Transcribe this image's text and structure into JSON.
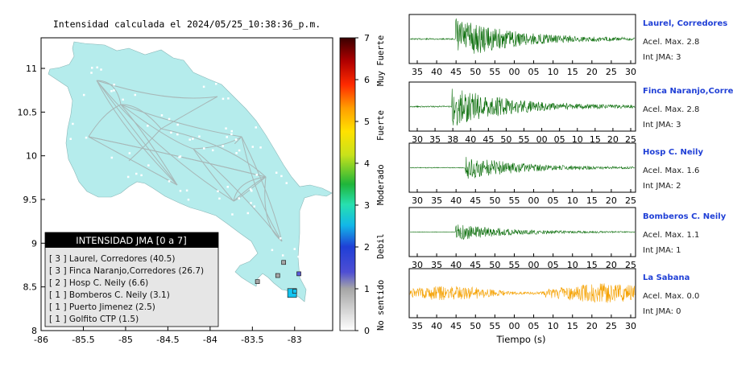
{
  "map": {
    "title": "Intensidad calculada el 2024/05/25_10:38:36_p.m.",
    "xticks": [
      "-86",
      "-85.5",
      "-85",
      "-84.5",
      "-84",
      "-83.5",
      "-83"
    ],
    "yticks": [
      "11",
      "10.5",
      "10",
      "9.5",
      "9",
      "8.5",
      "8"
    ],
    "legend": {
      "title": "INTENSIDAD JMA [0 a 7]",
      "items": [
        "[ 3 ]  Laurel, Corredores (40.5)",
        "[ 3 ]  Finca Naranjo,Corredores (26.7)",
        "[ 2 ]  Hosp C. Neily (6.6)",
        "[ 1 ]  Bomberos C. Neily (3.1)",
        "[ 1 ]  Puerto Jimenez (2.5)",
        "[ 1 ]  Golfito CTP (1.5)"
      ]
    }
  },
  "colorbar": {
    "ticks": [
      "0",
      "1",
      "2",
      "3",
      "4",
      "5",
      "6",
      "7"
    ],
    "categories": [
      "No sentido",
      "Debil",
      "Moderado",
      "Fuerte",
      "Muy Fuerte"
    ]
  },
  "waveforms": {
    "xlabel": "Tiempo (s)",
    "panels": [
      {
        "name": "Laurel, Corredores",
        "acel": "Acel. Max. 2.8",
        "jma": "Int JMA: 3",
        "color": "#0b6e0b",
        "ticks": [
          "35",
          "40",
          "45",
          "50",
          "55",
          "00",
          "05",
          "10",
          "15",
          "20",
          "25",
          "30"
        ]
      },
      {
        "name": "Finca Naranjo,Corredor",
        "acel": "Acel. Max. 2.8",
        "jma": "Int JMA: 3",
        "color": "#0b6e0b",
        "ticks": [
          "30",
          "35",
          "38",
          "40",
          "45",
          "50",
          "55",
          "00",
          "05",
          "10",
          "15",
          "20",
          "25"
        ]
      },
      {
        "name": "Hosp C. Neily",
        "acel": "Acel. Max. 1.6",
        "jma": "Int JMA: 2",
        "color": "#0b6e0b",
        "ticks": [
          "30",
          "35",
          "40",
          "45",
          "50",
          "55",
          "00",
          "05",
          "10",
          "15",
          "20",
          "25"
        ]
      },
      {
        "name": "Bomberos C. Neily",
        "acel": "Acel. Max. 1.1",
        "jma": "Int JMA: 1",
        "color": "#0b6e0b",
        "ticks": [
          "30",
          "35",
          "40",
          "45",
          "50",
          "55",
          "00",
          "05",
          "10",
          "15",
          "20",
          "25"
        ]
      },
      {
        "name": "La Sabana",
        "acel": "Acel. Max. 0.0",
        "jma": "Int JMA: 0",
        "color": "#f5a100",
        "ticks": [
          "35",
          "40",
          "45",
          "50",
          "55",
          "00",
          "05",
          "10",
          "15",
          "20",
          "25",
          "30"
        ]
      }
    ]
  },
  "chart_data": [
    {
      "type": "scatter",
      "title": "Intensidad calculada el 2024/05/25_10:38:36_p.m.",
      "xlim": [
        -86,
        -82.55
      ],
      "ylim": [
        8,
        11.35
      ],
      "legend_title": "INTENSIDAD JMA [0 a 7]",
      "legend_placement": "bottom-left",
      "points": [
        {
          "name": "Laurel, Corredores",
          "x": -83.03,
          "y": 8.43,
          "intensity": 3,
          "value": 40.5
        },
        {
          "name": "Finca Naranjo,Corredores",
          "x": -83.0,
          "y": 8.45,
          "intensity": 3,
          "value": 26.7
        },
        {
          "name": "Hosp C. Neily",
          "x": -82.95,
          "y": 8.65,
          "intensity": 2,
          "value": 6.6
        },
        {
          "name": "Bomberos C. Neily",
          "x": -83.13,
          "y": 8.78,
          "intensity": 1,
          "value": 3.1
        },
        {
          "name": "Puerto Jimenez",
          "x": -83.44,
          "y": 8.56,
          "intensity": 1,
          "value": 2.5
        },
        {
          "name": "Golfito CTP",
          "x": -83.2,
          "y": 8.63,
          "intensity": 1,
          "value": 1.5
        }
      ]
    },
    {
      "type": "heatmap",
      "ylim": [
        0,
        7
      ],
      "categories": [
        "No sentido",
        "Debil",
        "Moderado",
        "Fuerte",
        "Muy Fuerte"
      ]
    },
    {
      "type": "line",
      "xlabel": "Tiempo (s)",
      "series": [
        {
          "name": "Laurel, Corredores",
          "onset": 40,
          "peak": 2.8,
          "jma": 3
        },
        {
          "name": "Finca Naranjo,Corredor",
          "onset": 38,
          "peak": 2.8,
          "jma": 3
        },
        {
          "name": "Hosp C. Neily",
          "onset": 45,
          "peak": 1.6,
          "jma": 2
        },
        {
          "name": "Bomberos C. Neily",
          "onset": 40,
          "peak": 1.1,
          "jma": 1
        },
        {
          "name": "La Sabana",
          "onset": null,
          "peak": 0.0,
          "jma": 0
        }
      ]
    }
  ]
}
